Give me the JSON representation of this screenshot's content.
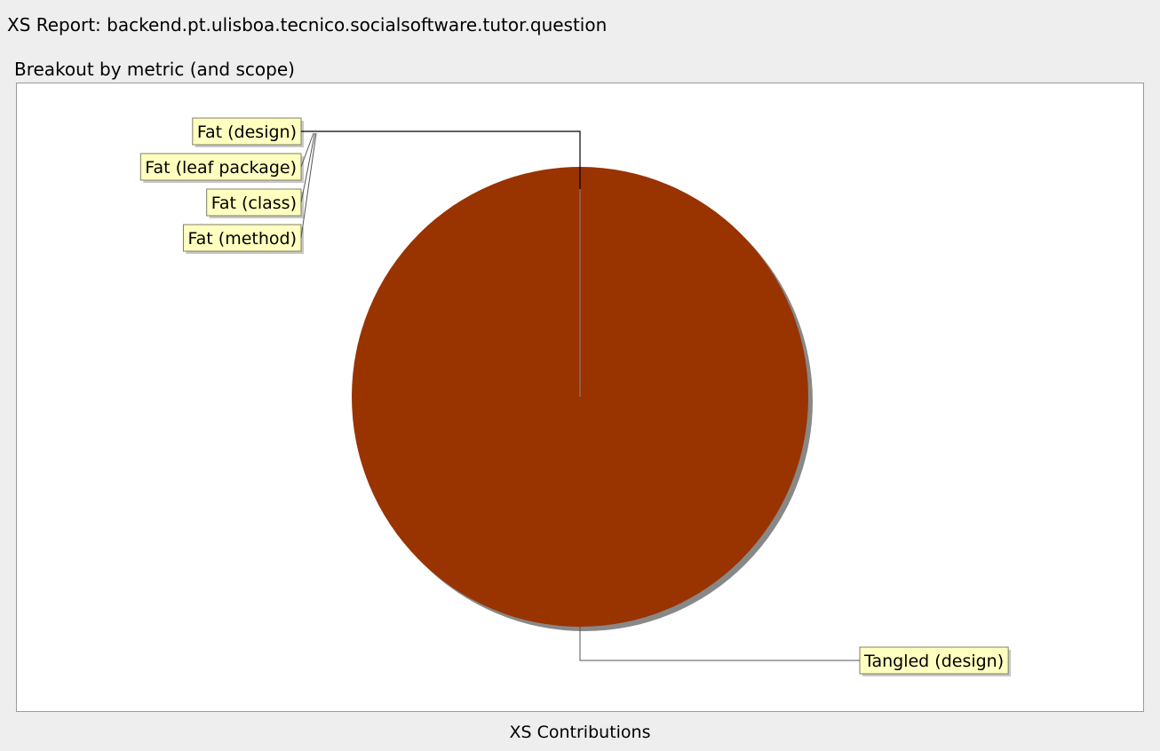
{
  "window": {
    "title": "XS Report: backend.pt.ulisboa.tecnico.socialsoftware.tutor.question"
  },
  "panel": {
    "title": "Breakout by metric (and scope)"
  },
  "chart_data": {
    "type": "pie",
    "title": "",
    "caption": "XS Contributions",
    "slices": [
      {
        "label": "Fat (design)",
        "value": 0,
        "color": "#993300"
      },
      {
        "label": "Fat (leaf package)",
        "value": 0,
        "color": "#993300"
      },
      {
        "label": "Fat (class)",
        "value": 0,
        "color": "#993300"
      },
      {
        "label": "Fat (method)",
        "value": 0,
        "color": "#993300"
      },
      {
        "label": "Tangled (design)",
        "value": 100,
        "color": "#993300"
      }
    ],
    "legend": "none",
    "label_style": {
      "background": "#ffffc0",
      "border": "#7f7f5f",
      "shadow": "#c8c8c8"
    },
    "shadow_color": "#888888"
  }
}
